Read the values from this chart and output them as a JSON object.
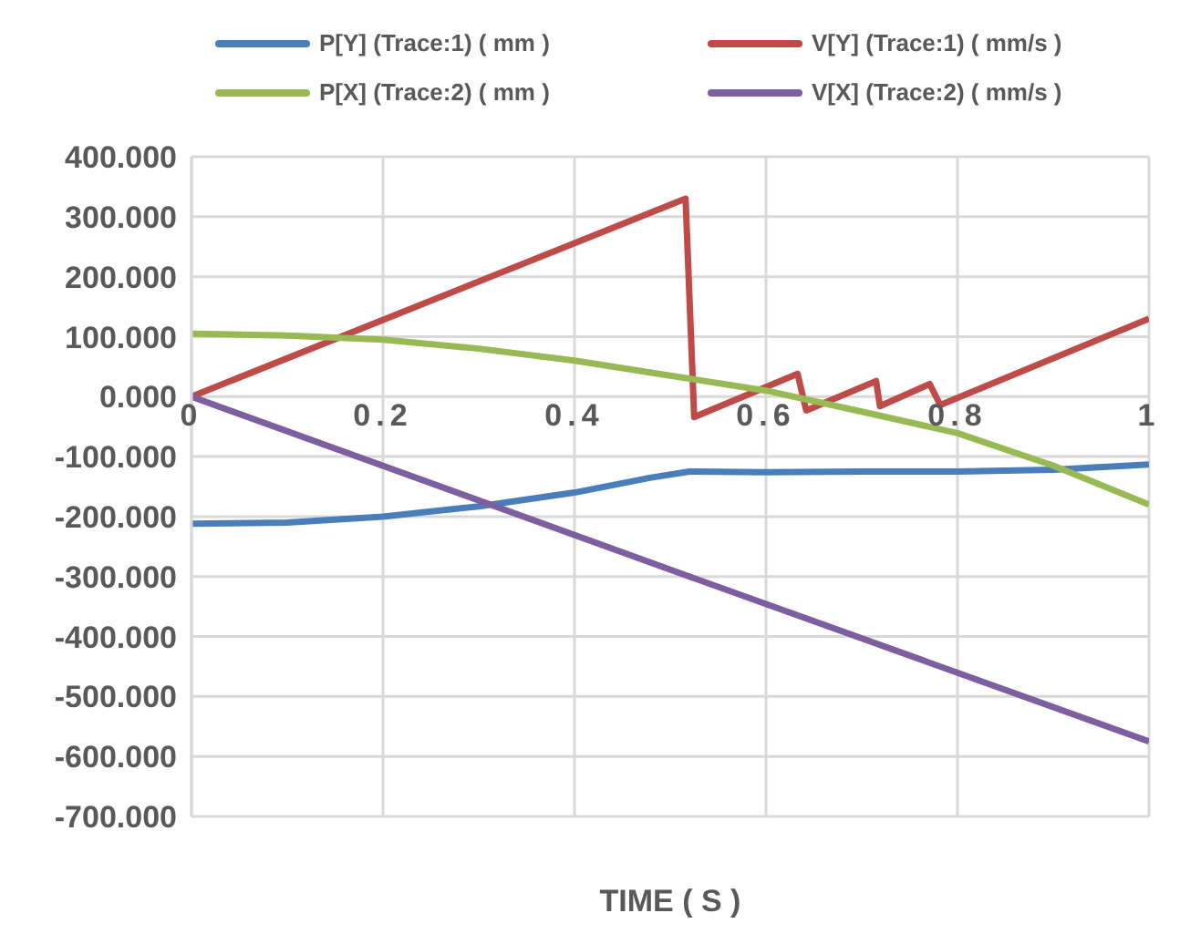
{
  "chart_data": {
    "type": "line",
    "xlabel": "TIME ( S )",
    "legend": "top",
    "grid": true,
    "marker": "none",
    "line_style": "solid",
    "xlim": [
      0,
      1
    ],
    "xticks": [
      0,
      0.2,
      0.4,
      0.6,
      0.8,
      1
    ],
    "ylim": [
      -700,
      400
    ],
    "yticks": [
      {
        "value": -700,
        "label": "-700.000"
      },
      {
        "value": -600,
        "label": "-600.000"
      },
      {
        "value": -500,
        "label": "-500.000"
      },
      {
        "value": -400,
        "label": "-400.000"
      },
      {
        "value": -300,
        "label": "-300.000"
      },
      {
        "value": -200,
        "label": "-200.000"
      },
      {
        "value": -100,
        "label": "-100.000"
      },
      {
        "value": 0,
        "label": "0.000"
      },
      {
        "value": 100,
        "label": "100.000"
      },
      {
        "value": 200,
        "label": "200.000"
      },
      {
        "value": 300,
        "label": "300.000"
      },
      {
        "value": 400,
        "label": "400.000"
      }
    ],
    "series": [
      {
        "name": "P[Y] (Trace:1) ( mm )",
        "color": "#4a7ebb",
        "x": [
          0,
          0.1,
          0.2,
          0.3,
          0.4,
          0.48,
          0.52,
          0.6,
          0.7,
          0.8,
          0.9,
          1
        ],
        "values": [
          -212,
          -210,
          -200,
          -183,
          -160,
          -135,
          -125,
          -126,
          -125,
          -125,
          -122,
          -113
        ]
      },
      {
        "name": "V[Y] (Trace:1) ( mm/s )",
        "color": "#be4b48",
        "x": [
          0,
          0.516,
          0.525,
          0.633,
          0.642,
          0.715,
          0.719,
          0.771,
          0.782,
          1
        ],
        "values": [
          0,
          330,
          -34,
          38,
          -23,
          26,
          -16,
          21,
          -14,
          130
        ]
      },
      {
        "name": "P[X] (Trace:2) ( mm )",
        "color": "#98b954",
        "x": [
          0,
          0.1,
          0.2,
          0.3,
          0.4,
          0.5,
          0.6,
          0.7,
          0.8,
          0.9,
          1
        ],
        "values": [
          105,
          102,
          95,
          80,
          60,
          35,
          10,
          -25,
          -61,
          -115,
          -180
        ]
      },
      {
        "name": "V[X] (Trace:2) ( mm/s )",
        "color": "#7d5fa0",
        "x": [
          0,
          0.52,
          1
        ],
        "values": [
          0,
          -300,
          -575
        ]
      }
    ]
  }
}
